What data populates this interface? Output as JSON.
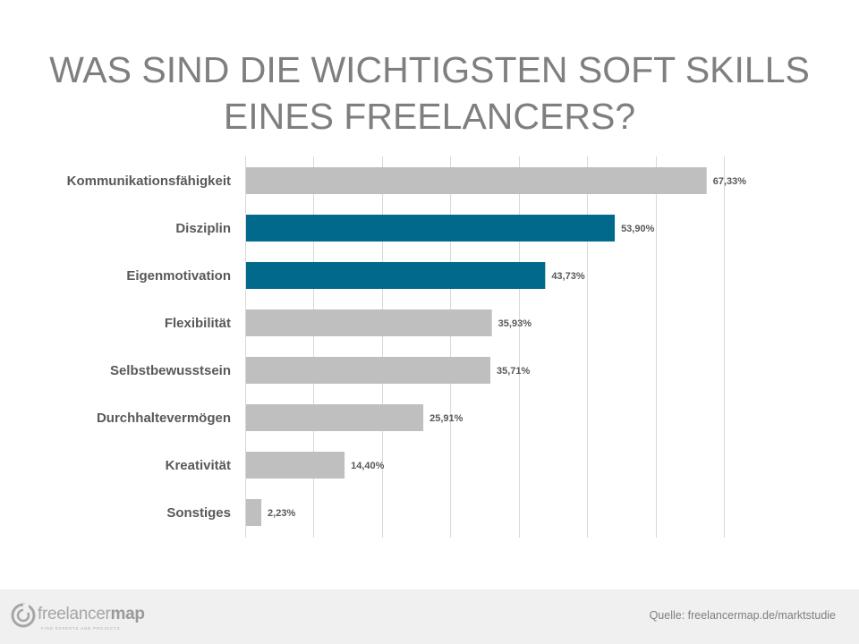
{
  "title": {
    "line1": "WAS SIND DIE WICHTIGSTEN SOFT SKILLS",
    "line2": "EINES FREELANCERS?"
  },
  "chart_data": {
    "type": "bar",
    "orientation": "horizontal",
    "title": "WAS SIND DIE WICHTIGSTEN SOFT SKILLS EINES FREELANCERS?",
    "categories": [
      "Kommunikationsfähigkeit",
      "Disziplin",
      "Eigenmotivation",
      "Flexibilität",
      "Selbstbewusstsein",
      "Durchhaltevermögen",
      "Kreativität",
      "Sonstiges"
    ],
    "values": [
      67.33,
      53.9,
      43.73,
      35.93,
      35.71,
      25.91,
      14.4,
      2.23
    ],
    "labels": [
      "67,33%",
      "53,90%",
      "43,73%",
      "35,93%",
      "35,71%",
      "25,91%",
      "14,40%",
      "2,23%"
    ],
    "highlighted": [
      false,
      true,
      true,
      false,
      false,
      false,
      false,
      false
    ],
    "xlim": [
      0,
      70
    ],
    "grid_step": 10,
    "grid": true,
    "xlabel": "",
    "ylabel": ""
  },
  "colors": {
    "bar_default": "#bfbfbf",
    "bar_highlight": "#016a8c",
    "gridline": "#d9d9d9",
    "title": "#7f7f7f",
    "label": "#595959",
    "footer_bg": "#f0f0f0"
  },
  "footer": {
    "logo_light": "freelancer",
    "logo_bold": "map",
    "tagline": "FIND EXPERTS AND PROJECTS",
    "source": "Quelle: freelancermap.de/marktstudie"
  }
}
